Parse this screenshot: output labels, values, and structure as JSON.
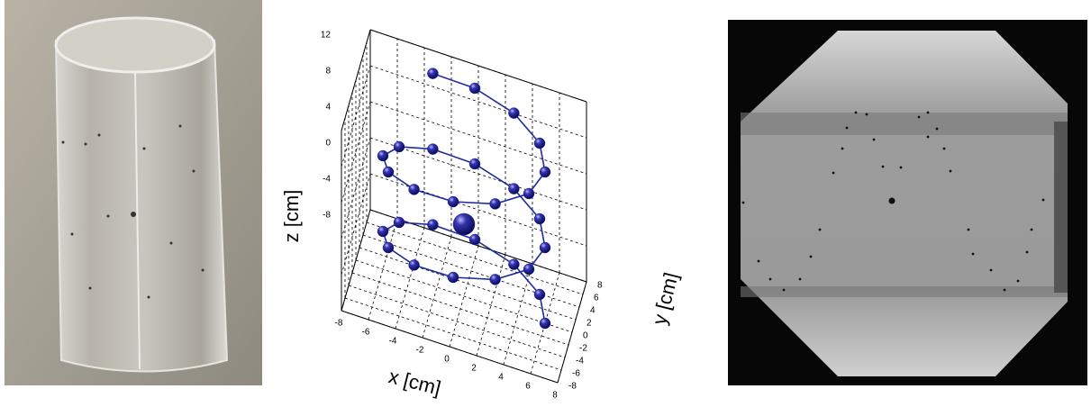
{
  "chart_data": {
    "type": "scatter3d",
    "x_label": "x [cm]",
    "y_label": "y [cm]",
    "z_label": "z [cm]",
    "xlim": [
      -8,
      8
    ],
    "ylim": [
      -8,
      8
    ],
    "zlim": [
      -8,
      12
    ],
    "xticks": [
      -8,
      -6,
      -4,
      -2,
      0,
      2,
      4,
      6,
      8
    ],
    "yticks": [
      -8,
      -6,
      -4,
      -2,
      0,
      2,
      4,
      6,
      8
    ],
    "zticks": [
      -8,
      -4,
      0,
      4,
      8,
      12
    ],
    "grid": true,
    "series": [
      {
        "color": "#1f2a9e",
        "line": true,
        "x": [
          6,
          5.2,
          3,
          0,
          -3,
          -5.2,
          -6,
          -5.2,
          -3,
          0,
          3,
          5.2,
          6,
          5.2,
          3,
          0,
          -3,
          -5.2,
          -6,
          -5.2,
          -3,
          0,
          3,
          5.2,
          6,
          5.2,
          3,
          0,
          -3
        ],
        "y": [
          0,
          3,
          5.2,
          6,
          5.2,
          3,
          0,
          -3,
          -5.2,
          -6,
          -5.2,
          -3,
          0,
          3,
          5.2,
          6,
          5.2,
          3,
          0,
          -3,
          -5.2,
          -6,
          -5.2,
          -3,
          0,
          3,
          5.2,
          6,
          5.2
        ],
        "z": [
          -8,
          -7.3,
          -6.6,
          -5.9,
          -5.2,
          -4.5,
          -3.8,
          -3.1,
          -2.4,
          -1.7,
          -1,
          -0.3,
          0.4,
          1.1,
          1.8,
          2.5,
          3.2,
          3.9,
          4.6,
          5.3,
          6,
          6.7,
          7.4,
          8.1,
          8.8,
          9.5,
          10.2,
          10.9,
          11.6
        ]
      },
      {
        "color": "#1f2a9e",
        "line": false,
        "x": [
          0
        ],
        "y": [
          0
        ],
        "z": [
          0
        ],
        "size": 2
      }
    ]
  }
}
